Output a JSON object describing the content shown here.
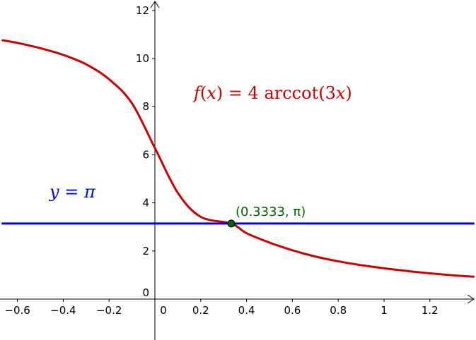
{
  "chart_data": {
    "type": "line",
    "title": "",
    "xlabel": "",
    "ylabel": "",
    "xlim": [
      -0.665,
      1.39
    ],
    "ylim": [
      -1.75,
      12.45
    ],
    "grid": false,
    "x_ticks": [
      {
        "value": -0.6,
        "label": "−0.6"
      },
      {
        "value": -0.4,
        "label": "−0.4"
      },
      {
        "value": -0.2,
        "label": "−0.2"
      },
      {
        "value": 0,
        "label": "0"
      },
      {
        "value": 0.2,
        "label": "0.2"
      },
      {
        "value": 0.4,
        "label": "0.4"
      },
      {
        "value": 0.6,
        "label": "0.6"
      },
      {
        "value": 0.8,
        "label": "0.8"
      },
      {
        "value": 1,
        "label": "1"
      },
      {
        "value": 1.2,
        "label": "1.2"
      }
    ],
    "y_ticks": [
      {
        "value": 0,
        "label": "0"
      },
      {
        "value": 2,
        "label": "2"
      },
      {
        "value": 4,
        "label": "4"
      },
      {
        "value": 6,
        "label": "6"
      },
      {
        "value": 8,
        "label": "8"
      },
      {
        "value": 10,
        "label": "10"
      },
      {
        "value": 12,
        "label": "12"
      }
    ],
    "series": [
      {
        "color": "#cc0000",
        "x": [
          -0.665,
          -0.6,
          -0.5,
          -0.4,
          -0.3,
          -0.2,
          -0.1,
          0,
          0.1,
          0.2,
          0.3333,
          0.4,
          0.5,
          0.6,
          0.7,
          0.8,
          0.9,
          1.0,
          1.1,
          1.2,
          1.3,
          1.39
        ],
        "y": [
          10.76,
          10.65,
          10.43,
          10.15,
          9.76,
          9.14,
          8.14,
          6.28,
          4.42,
          3.42,
          3.14,
          2.74,
          2.35,
          2.03,
          1.77,
          1.57,
          1.41,
          1.28,
          1.17,
          1.07,
          0.99,
          0.93
        ]
      },
      {
        "color": "#0000ff",
        "x": [
          -0.665,
          1.39
        ],
        "y": [
          3.1416,
          3.1416
        ]
      }
    ],
    "point": {
      "x": 0.3333,
      "y": 3.1416,
      "label": "(0.3333, π)",
      "color": "#006400"
    },
    "annotations": {
      "curve_label": {
        "f": "f",
        "open": "(",
        "x1": "x",
        "mid": ") = 4 ",
        "fn": "arccot",
        "arg_open": "(3",
        "x2": "x",
        "close": ")"
      },
      "line_label": {
        "y": "y",
        "eq": " = ",
        "pi": "π"
      }
    }
  }
}
